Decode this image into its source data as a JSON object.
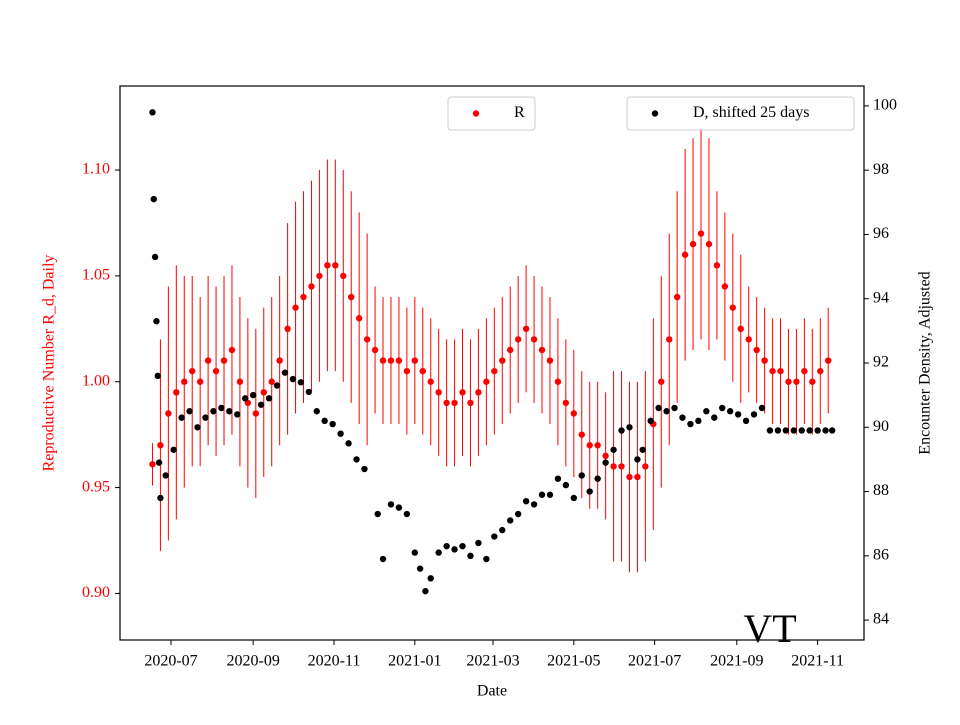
{
  "chart_data": {
    "type": "scatter",
    "annotation": "VT",
    "x_label": "Date",
    "y_label": "Reproductive Number R_d, Daily",
    "y2_label": "Encounter Density, Adjusted",
    "xlim": [
      18405.5,
      18967
    ],
    "xticks": [
      {
        "value": 18444,
        "label": "2020-07"
      },
      {
        "value": 18506,
        "label": "2020-09"
      },
      {
        "value": 18567,
        "label": "2020-11"
      },
      {
        "value": 18628,
        "label": "2021-01"
      },
      {
        "value": 18687,
        "label": "2021-03"
      },
      {
        "value": 18748,
        "label": "2021-05"
      },
      {
        "value": 18809,
        "label": "2021-07"
      },
      {
        "value": 18871,
        "label": "2021-09"
      },
      {
        "value": 18932,
        "label": "2021-11"
      }
    ],
    "ylim": [
      0.878,
      1.1397
    ],
    "yticks": [
      {
        "value": 0.9,
        "label": "0.90"
      },
      0.95,
      {
        "value": 1.0,
        "label": "1.00"
      },
      1.05,
      {
        "value": 1.1,
        "label": "1.10"
      }
    ],
    "y2lim": [
      83.38,
      100.62
    ],
    "y2ticks": [
      84,
      86,
      88,
      90,
      92,
      94,
      96,
      98,
      100
    ],
    "series": [
      {
        "name": "R",
        "color": "#ff0000",
        "x": [
          18430,
          18436,
          18442,
          18448,
          18454,
          18460,
          18466,
          18472,
          18478,
          18484,
          18490,
          18496,
          18502,
          18508,
          18514,
          18520,
          18526,
          18532,
          18538,
          18544,
          18550,
          18556,
          18562,
          18568,
          18574,
          18580,
          18586,
          18592,
          18598,
          18604,
          18610,
          18616,
          18622,
          18628,
          18634,
          18640,
          18646,
          18652,
          18658,
          18664,
          18670,
          18676,
          18682,
          18688,
          18694,
          18700,
          18706,
          18712,
          18718,
          18724,
          18730,
          18736,
          18742,
          18748,
          18754,
          18760,
          18766,
          18772,
          18778,
          18784,
          18790,
          18796,
          18802,
          18808,
          18814,
          18820,
          18826,
          18832,
          18838,
          18844,
          18850,
          18856,
          18862,
          18868,
          18874,
          18880,
          18886,
          18892,
          18898,
          18904,
          18910,
          18916,
          18922,
          18928,
          18934,
          18940
        ],
        "values": [
          0.961,
          0.97,
          0.985,
          0.995,
          1.0,
          1.005,
          1.0,
          1.01,
          1.005,
          1.01,
          1.015,
          1.0,
          0.99,
          0.985,
          0.995,
          1.0,
          1.01,
          1.025,
          1.035,
          1.04,
          1.045,
          1.05,
          1.055,
          1.055,
          1.05,
          1.04,
          1.03,
          1.02,
          1.015,
          1.01,
          1.01,
          1.01,
          1.005,
          1.01,
          1.005,
          1.0,
          0.995,
          0.99,
          0.99,
          0.995,
          0.99,
          0.995,
          1.0,
          1.005,
          1.01,
          1.015,
          1.02,
          1.025,
          1.02,
          1.015,
          1.01,
          1.0,
          0.99,
          0.985,
          0.975,
          0.97,
          0.97,
          0.965,
          0.96,
          0.96,
          0.955,
          0.955,
          0.96,
          0.98,
          1.0,
          1.02,
          1.04,
          1.06,
          1.065,
          1.07,
          1.065,
          1.055,
          1.045,
          1.035,
          1.025,
          1.02,
          1.015,
          1.01,
          1.005,
          1.005,
          1.0,
          1.0,
          1.005,
          1.0,
          1.005,
          1.01
        ],
        "errors": [
          0.01,
          0.05,
          0.06,
          0.06,
          0.05,
          0.045,
          0.04,
          0.04,
          0.04,
          0.04,
          0.04,
          0.04,
          0.04,
          0.04,
          0.04,
          0.04,
          0.04,
          0.05,
          0.05,
          0.05,
          0.05,
          0.05,
          0.05,
          0.05,
          0.05,
          0.05,
          0.05,
          0.05,
          0.03,
          0.03,
          0.03,
          0.03,
          0.03,
          0.03,
          0.03,
          0.03,
          0.03,
          0.03,
          0.03,
          0.03,
          0.03,
          0.03,
          0.03,
          0.03,
          0.03,
          0.03,
          0.03,
          0.03,
          0.03,
          0.03,
          0.03,
          0.03,
          0.03,
          0.03,
          0.03,
          0.03,
          0.03,
          0.03,
          0.045,
          0.045,
          0.045,
          0.045,
          0.045,
          0.05,
          0.05,
          0.05,
          0.05,
          0.05,
          0.05,
          0.05,
          0.05,
          0.035,
          0.035,
          0.035,
          0.035,
          0.025,
          0.025,
          0.025,
          0.025,
          0.025,
          0.025,
          0.025,
          0.025,
          0.025,
          0.025,
          0.025
        ]
      },
      {
        "name": "D, shifted 25 days",
        "color": "#000000",
        "axis": "y2",
        "x": [
          18430,
          18431,
          18432,
          18433,
          18434,
          18435,
          18436,
          18440,
          18446,
          18452,
          18458,
          18464,
          18470,
          18476,
          18482,
          18488,
          18494,
          18500,
          18506,
          18512,
          18518,
          18524,
          18530,
          18536,
          18542,
          18548,
          18554,
          18560,
          18566,
          18572,
          18578,
          18584,
          18590,
          18600,
          18604,
          18610,
          18616,
          18622,
          18628,
          18632,
          18636,
          18640,
          18646,
          18652,
          18658,
          18664,
          18670,
          18676,
          18682,
          18688,
          18694,
          18700,
          18706,
          18712,
          18718,
          18724,
          18730,
          18736,
          18742,
          18748,
          18754,
          18760,
          18766,
          18772,
          18778,
          18784,
          18790,
          18796,
          18800,
          18806,
          18812,
          18818,
          18824,
          18830,
          18836,
          18842,
          18848,
          18854,
          18860,
          18866,
          18872,
          18878,
          18884,
          18890,
          18896,
          18902,
          18908,
          18914,
          18920,
          18926,
          18932,
          18938,
          18943
        ],
        "values": [
          99.8,
          97.1,
          95.3,
          93.3,
          91.6,
          88.9,
          87.8,
          88.5,
          89.3,
          90.3,
          90.5,
          90.0,
          90.3,
          90.5,
          90.6,
          90.5,
          90.4,
          90.9,
          91.0,
          90.7,
          90.9,
          91.3,
          91.7,
          91.5,
          91.4,
          91.1,
          90.5,
          90.2,
          90.1,
          89.8,
          89.5,
          89.0,
          88.7,
          87.3,
          85.9,
          87.6,
          87.5,
          87.3,
          86.1,
          85.6,
          84.9,
          85.3,
          86.1,
          86.3,
          86.2,
          86.3,
          86.0,
          86.4,
          85.9,
          86.6,
          86.8,
          87.1,
          87.3,
          87.7,
          87.6,
          87.9,
          87.9,
          88.4,
          88.2,
          87.8,
          88.5,
          88.0,
          88.4,
          88.9,
          89.3,
          89.9,
          90.0,
          89.0,
          89.3,
          90.2,
          90.6,
          90.5,
          90.6,
          90.3,
          90.1,
          90.2,
          90.5,
          90.3,
          90.6,
          90.5,
          90.4,
          90.2,
          90.4,
          90.6,
          89.9,
          89.9,
          89.9,
          89.9,
          89.9,
          89.9,
          89.9,
          89.9,
          89.9
        ]
      }
    ]
  }
}
